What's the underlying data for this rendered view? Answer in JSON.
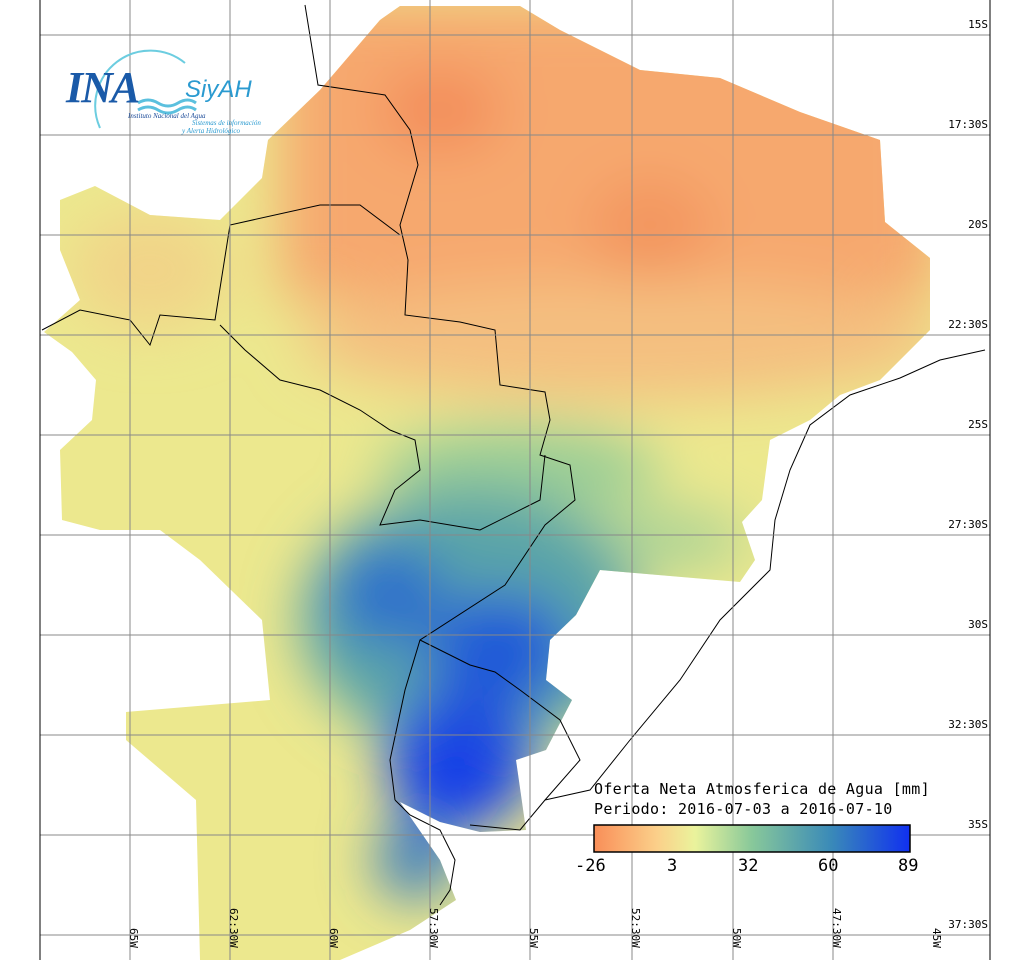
{
  "logo": {
    "main": "INA",
    "product": "SiyAH",
    "institution": "Instituto Nacional del Agua",
    "subtitle_1": "Sistemas de información",
    "subtitle_2": "y Alerta Hidrológico"
  },
  "legend": {
    "title": "Oferta Neta Atmosferica de Agua [mm]",
    "period": "Periodo: 2016-07-03 a 2016-07-10",
    "ticks": [
      "-26",
      "3",
      "32",
      "60",
      "89"
    ],
    "colors": [
      "#f98e58",
      "#fbc47e",
      "#ecf19a",
      "#88c89a",
      "#3a8ab8",
      "#1030f0"
    ]
  },
  "lat_labels": [
    "15S",
    "17:30S",
    "20S",
    "22:30S",
    "25S",
    "27:30S",
    "30S",
    "32:30S",
    "35S",
    "37:30S"
  ],
  "lon_labels": [
    "65W",
    "62:30W",
    "60W",
    "57:30W",
    "55W",
    "52:30W",
    "50W",
    "47:30W",
    "45W"
  ]
}
